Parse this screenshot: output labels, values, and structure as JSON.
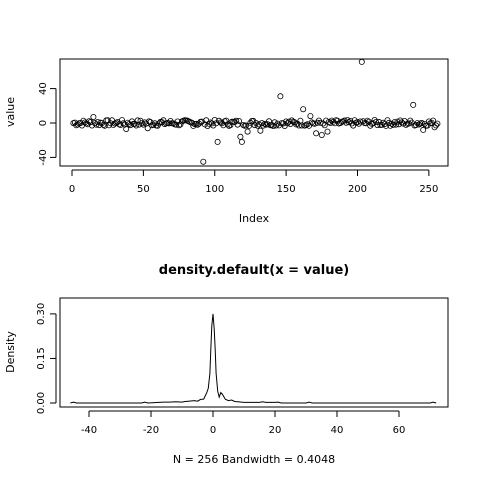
{
  "chart_data": [
    {
      "type": "scatter",
      "xlabel": "Index",
      "ylabel": "value",
      "xlim": [
        0,
        256
      ],
      "ylim": [
        -45,
        72
      ],
      "x_ticks": [
        0,
        50,
        100,
        150,
        200,
        250
      ],
      "y_ticks": [
        -40,
        0,
        40
      ],
      "x_tick_labels": [
        "0",
        "50",
        "100",
        "150",
        "200",
        "250"
      ],
      "y_tick_labels": [
        "-40",
        "0",
        "40"
      ],
      "n_points": 256,
      "notable_points": [
        {
          "x": 15,
          "y": 7
        },
        {
          "x": 38,
          "y": -7
        },
        {
          "x": 53,
          "y": -6
        },
        {
          "x": 92,
          "y": -45
        },
        {
          "x": 102,
          "y": -22
        },
        {
          "x": 118,
          "y": -16
        },
        {
          "x": 119,
          "y": -22
        },
        {
          "x": 123,
          "y": -10
        },
        {
          "x": 132,
          "y": -9
        },
        {
          "x": 146,
          "y": 31
        },
        {
          "x": 162,
          "y": 16
        },
        {
          "x": 167,
          "y": 8
        },
        {
          "x": 171,
          "y": -12
        },
        {
          "x": 175,
          "y": -14
        },
        {
          "x": 179,
          "y": -10
        },
        {
          "x": 203,
          "y": 71
        },
        {
          "x": 239,
          "y": 21
        },
        {
          "x": 246,
          "y": -8
        },
        {
          "x": 254,
          "y": -5
        }
      ]
    },
    {
      "type": "line",
      "title": "density.default(x = value)",
      "xlabel": "N = 256   Bandwidth = 0.4048",
      "ylabel": "Density",
      "xlim": [
        -46,
        72
      ],
      "ylim": [
        0,
        0.32
      ],
      "x_ticks": [
        -40,
        -20,
        0,
        20,
        40,
        60
      ],
      "y_ticks": [
        0,
        0.15,
        0.3
      ],
      "x_tick_labels": [
        "-40",
        "-20",
        "0",
        "20",
        "40",
        "60"
      ],
      "y_tick_labels": [
        "0.00",
        "0.15",
        "0.30"
      ],
      "x": [
        -46,
        -45,
        -44,
        -30,
        -23,
        -22,
        -21,
        -16,
        -14,
        -12,
        -10,
        -9,
        -8,
        -6,
        -5,
        -4,
        -3,
        -2,
        -1.5,
        -1,
        -0.7,
        -0.4,
        0,
        0.4,
        0.7,
        1,
        1.5,
        2,
        2.5,
        3,
        4,
        5,
        6,
        7,
        8,
        10,
        15,
        16,
        17,
        20,
        21,
        22,
        30,
        31,
        32,
        40,
        50,
        60,
        70,
        71,
        72
      ],
      "y": [
        0,
        0.003,
        0,
        0,
        0,
        0.003,
        0,
        0.003,
        0.003,
        0.004,
        0.003,
        0.005,
        0.006,
        0.008,
        0.006,
        0.012,
        0.013,
        0.035,
        0.05,
        0.1,
        0.18,
        0.26,
        0.3,
        0.25,
        0.18,
        0.1,
        0.04,
        0.02,
        0.035,
        0.03,
        0.012,
        0.008,
        0.01,
        0.005,
        0.004,
        0.002,
        0.002,
        0.004,
        0.002,
        0.002,
        0.003,
        0,
        0,
        0.003,
        0,
        0,
        0,
        0,
        0,
        0.003,
        0
      ]
    }
  ]
}
